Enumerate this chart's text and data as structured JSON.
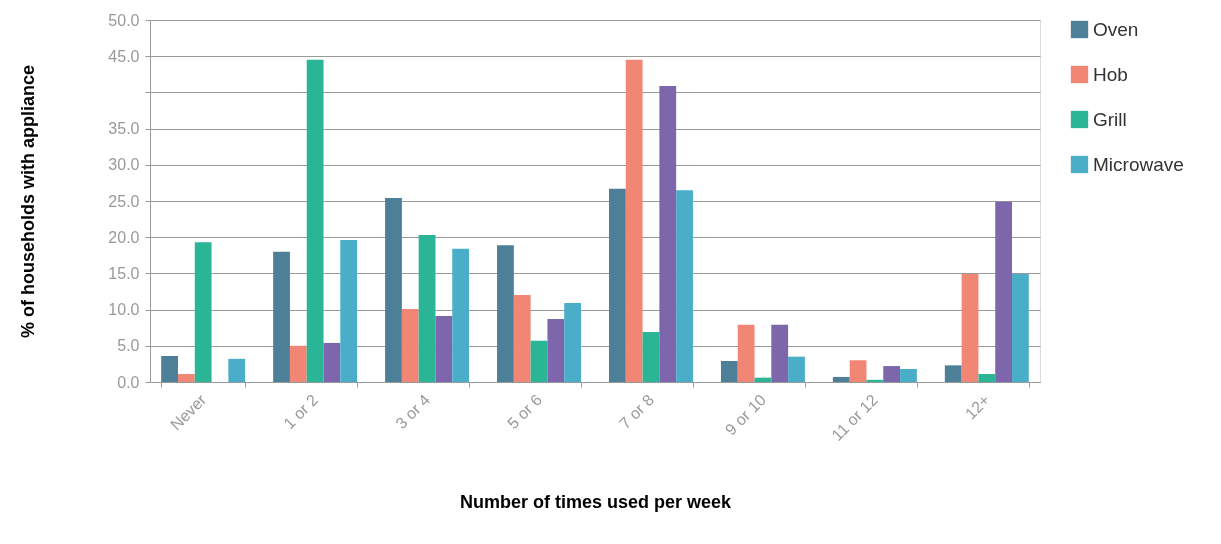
{
  "chart_data": {
    "type": "bar",
    "xlabel": "Number of times used per week",
    "ylabel": "% of households with appliance",
    "categories": [
      "Never",
      "1 or 2",
      "3 or 4",
      "5 or 6",
      "7 or 8",
      "9 or 10",
      "11 or 12",
      "12+"
    ],
    "series": [
      {
        "name": "Oven",
        "color": "#4e7f99",
        "values": [
          3.6,
          18.0,
          25.4,
          18.9,
          26.7,
          2.9,
          0.7,
          2.3
        ]
      },
      {
        "name": "Hob",
        "color": "#f08673",
        "values": [
          1.1,
          5.0,
          10.1,
          12.0,
          44.5,
          7.9,
          3.0,
          14.9
        ]
      },
      {
        "name": "Grill",
        "color": "#2bb597",
        "values": [
          19.3,
          44.5,
          20.3,
          5.7,
          6.9,
          0.6,
          0.3,
          1.1
        ]
      },
      {
        "color": "#7e66ad",
        "values": [
          null,
          5.4,
          9.1,
          8.7,
          40.9,
          7.9,
          2.2,
          24.9
        ]
      },
      {
        "name": "Microwave",
        "color": "#4aaec9",
        "values": [
          3.2,
          19.6,
          18.4,
          10.9,
          26.5,
          3.5,
          1.8,
          14.9
        ]
      }
    ],
    "ylim": [
      0,
      50
    ],
    "yticks": [
      {
        "value": 0,
        "label": "0.0"
      },
      {
        "value": 5,
        "label": "5.0"
      },
      {
        "value": 10,
        "label": "10.0"
      },
      {
        "value": 15,
        "label": "15.0"
      },
      {
        "value": 20,
        "label": "20.0"
      },
      {
        "value": 25,
        "label": "25.0"
      },
      {
        "value": 30,
        "label": "30.0"
      },
      {
        "value": 35,
        "label": "35.0"
      },
      {
        "value": 40,
        "label": null
      },
      {
        "value": 45,
        "label": "45.0"
      },
      {
        "value": 50,
        "label": "50.0"
      }
    ],
    "grid": "y",
    "legend": "right"
  }
}
